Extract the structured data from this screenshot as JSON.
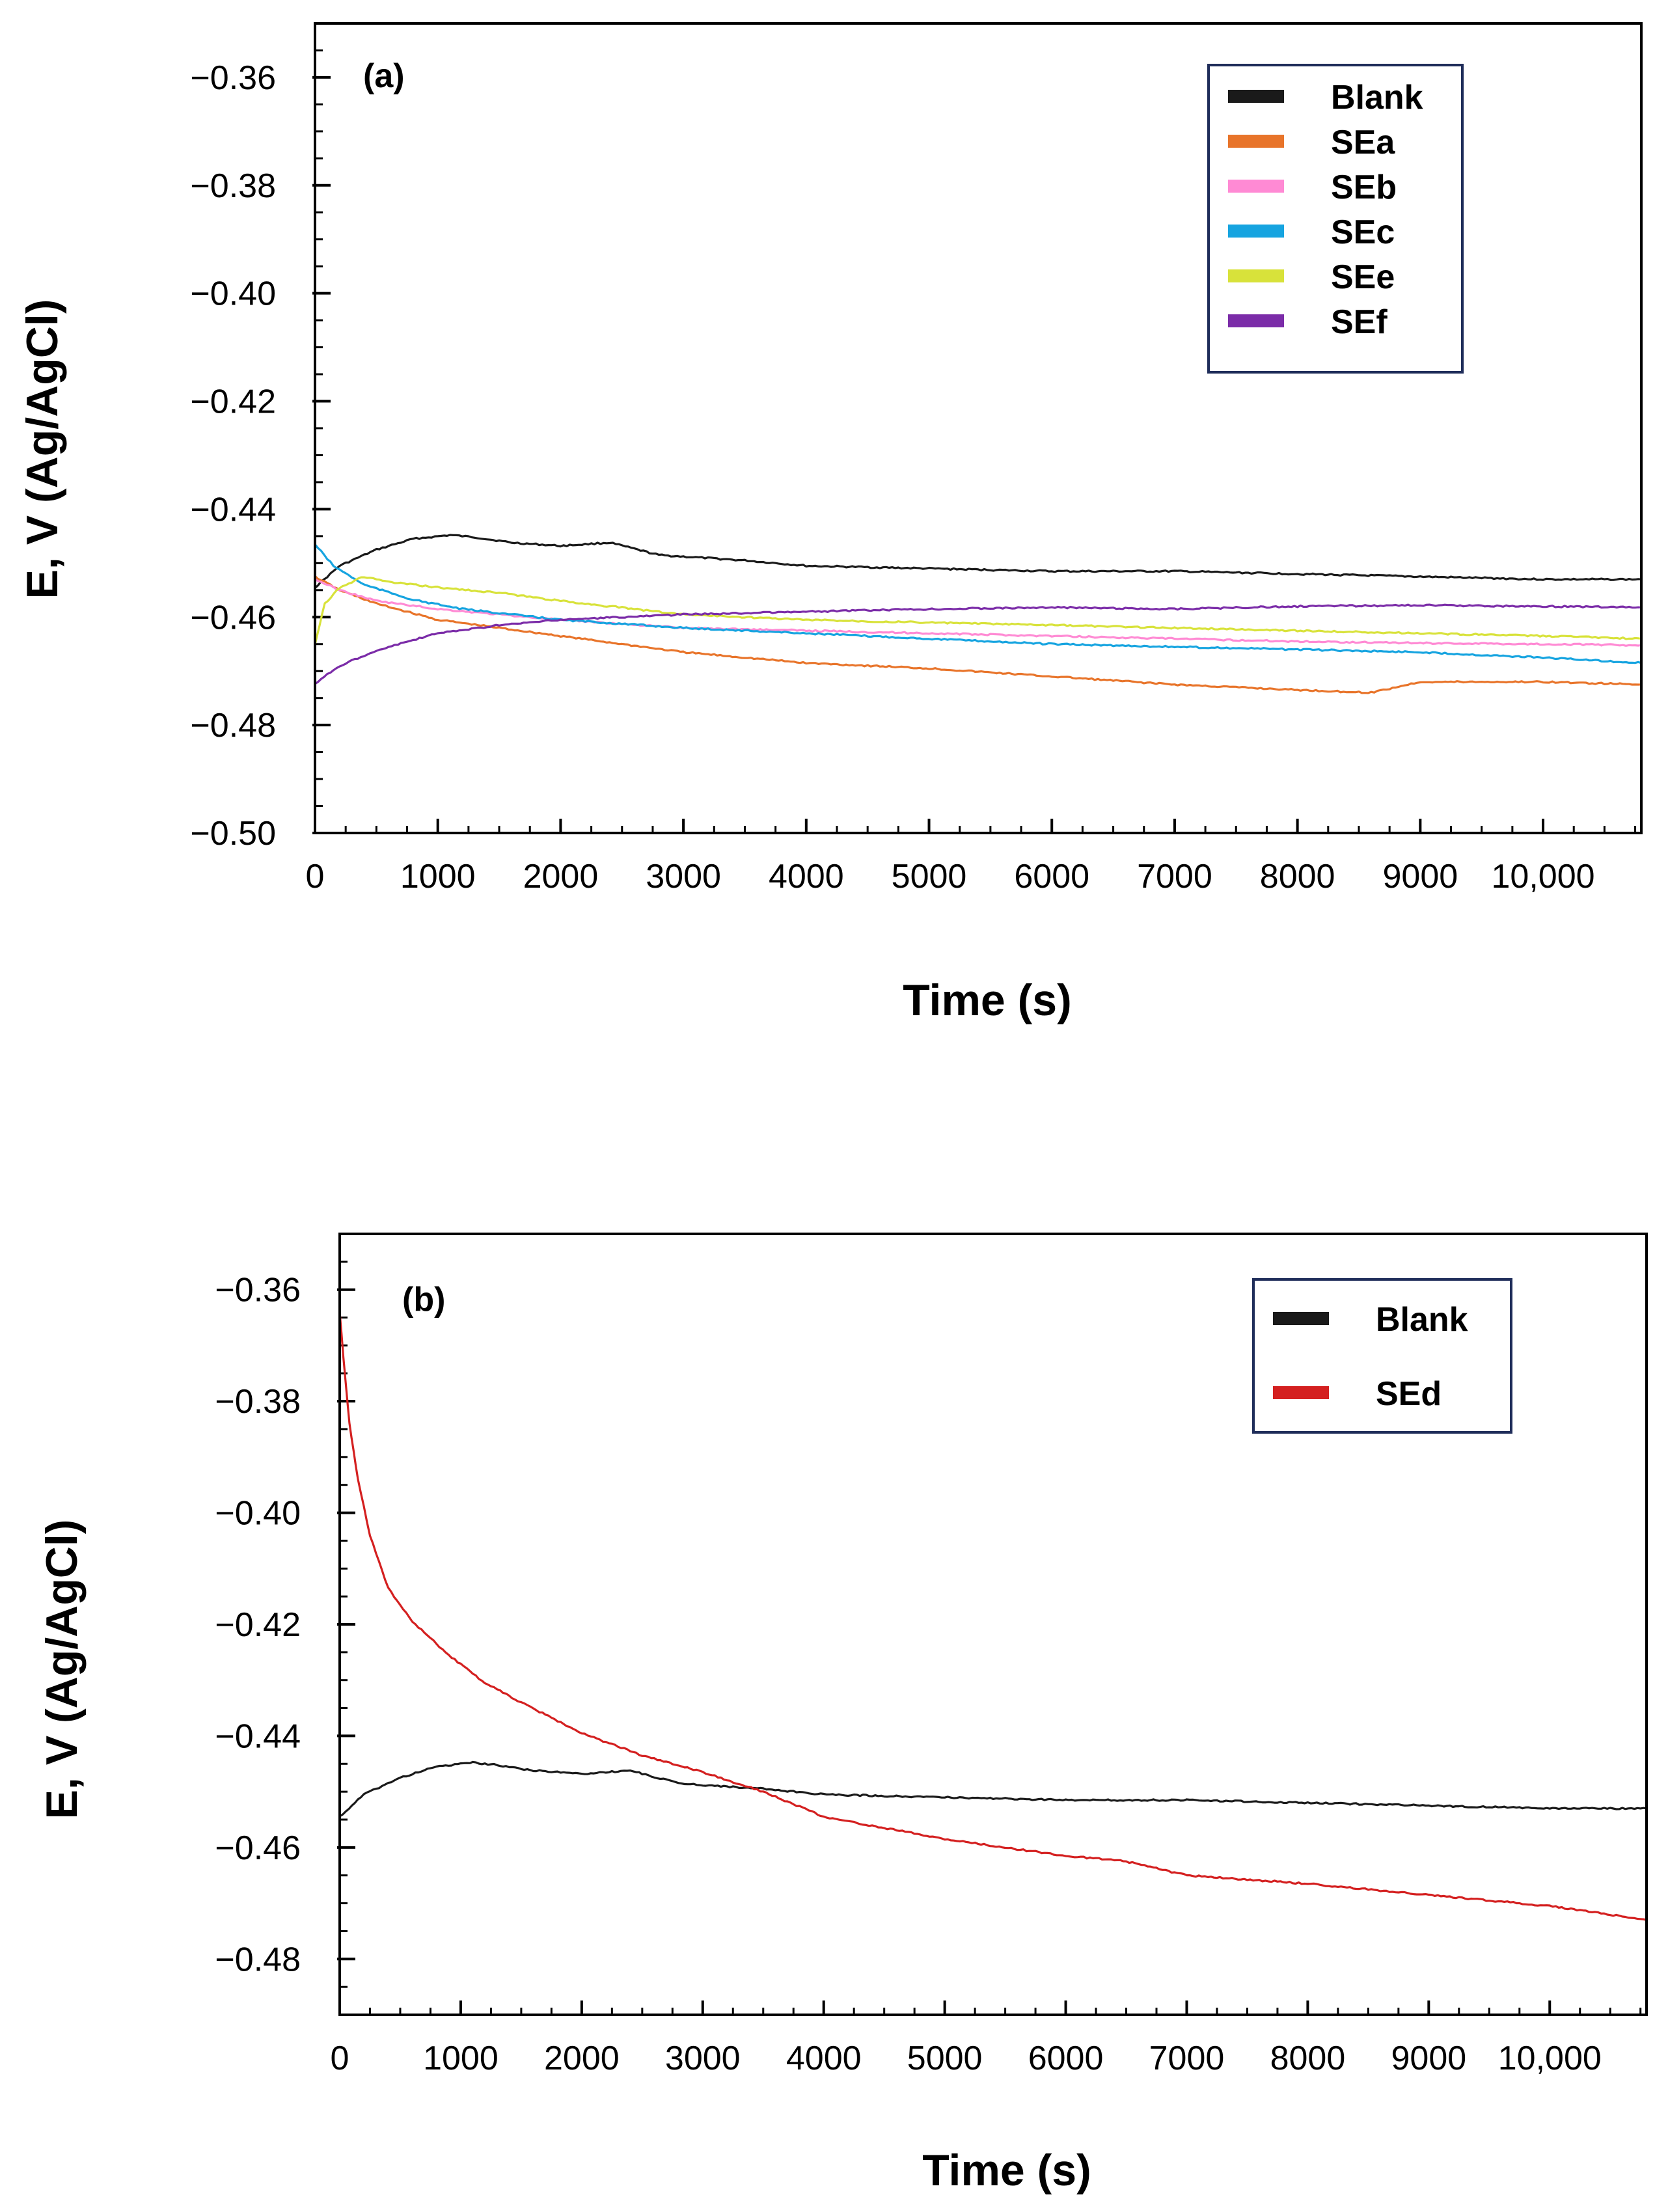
{
  "chart_data": [
    {
      "type": "line",
      "panel_label": "(a)",
      "xlabel": "Time (s)",
      "ylabel": "E, V (Ag/AgCl)",
      "xlim": [
        0,
        10800
      ],
      "ylim": [
        -0.5,
        -0.35
      ],
      "x_ticks": [
        0,
        1000,
        2000,
        3000,
        4000,
        5000,
        6000,
        7000,
        8000,
        9000,
        10000
      ],
      "x_tick_labels": [
        "0",
        "1000",
        "2000",
        "3000",
        "4000",
        "5000",
        "6000",
        "7000",
        "8000",
        "9000",
        "10,000"
      ],
      "y_ticks": [
        -0.36,
        -0.38,
        -0.4,
        -0.42,
        -0.44,
        -0.46,
        -0.48,
        -0.5
      ],
      "y_tick_labels": [
        "−0.36",
        "−0.38",
        "−0.40",
        "−0.42",
        "−0.44",
        "−0.46",
        "−0.48",
        "−0.50"
      ],
      "y_minor_step": 0.005,
      "legend_position": "top-right",
      "series": [
        {
          "name": "Blank",
          "color": "#1a1a1a",
          "x": [
            0,
            200,
            500,
            800,
            1100,
            1300,
            1600,
            2000,
            2400,
            2800,
            3500,
            4000,
            5000,
            6000,
            7000,
            8000,
            9000,
            10000,
            10800
          ],
          "y": [
            -0.4545,
            -0.4505,
            -0.4475,
            -0.4455,
            -0.4448,
            -0.4452,
            -0.4462,
            -0.4468,
            -0.4462,
            -0.4485,
            -0.4495,
            -0.4505,
            -0.451,
            -0.4515,
            -0.4515,
            -0.452,
            -0.4525,
            -0.453,
            -0.453
          ]
        },
        {
          "name": "SEa",
          "color": "#e8742a",
          "x": [
            0,
            200,
            500,
            1000,
            1500,
            2000,
            3000,
            4000,
            5000,
            6000,
            7000,
            8000,
            8600,
            9000,
            10000,
            10800
          ],
          "y": [
            -0.4525,
            -0.455,
            -0.4575,
            -0.4605,
            -0.462,
            -0.4635,
            -0.4665,
            -0.4685,
            -0.4695,
            -0.471,
            -0.4725,
            -0.4735,
            -0.474,
            -0.472,
            -0.472,
            -0.4725
          ]
        },
        {
          "name": "SEb",
          "color": "#ff8ad4",
          "x": [
            0,
            200,
            500,
            1000,
            2000,
            3000,
            4000,
            5000,
            6000,
            7000,
            8000,
            9000,
            10000,
            10800
          ],
          "y": [
            -0.453,
            -0.455,
            -0.457,
            -0.4585,
            -0.4605,
            -0.462,
            -0.4625,
            -0.463,
            -0.4635,
            -0.464,
            -0.4645,
            -0.4648,
            -0.465,
            -0.4652
          ]
        },
        {
          "name": "SEc",
          "color": "#16a4e0",
          "x": [
            0,
            150,
            400,
            800,
            1200,
            2000,
            3000,
            4000,
            5000,
            6000,
            7000,
            8000,
            9000,
            10000,
            10800
          ],
          "y": [
            -0.4465,
            -0.4505,
            -0.454,
            -0.4568,
            -0.4585,
            -0.4605,
            -0.462,
            -0.463,
            -0.464,
            -0.465,
            -0.4655,
            -0.466,
            -0.4665,
            -0.4675,
            -0.4685
          ]
        },
        {
          "name": "SEe",
          "color": "#d8e23a",
          "x": [
            0,
            80,
            200,
            400,
            600,
            1000,
            1500,
            2000,
            3000,
            4000,
            5000,
            6000,
            7000,
            8000,
            9000,
            10000,
            10800
          ],
          "y": [
            -0.465,
            -0.4575,
            -0.4545,
            -0.4525,
            -0.4535,
            -0.4545,
            -0.4555,
            -0.457,
            -0.4595,
            -0.4605,
            -0.461,
            -0.4615,
            -0.462,
            -0.4625,
            -0.463,
            -0.4635,
            -0.464
          ]
        },
        {
          "name": "SEf",
          "color": "#7b2ca8",
          "x": [
            0,
            100,
            300,
            600,
            1000,
            1500,
            2000,
            3000,
            4000,
            5000,
            6000,
            7000,
            8000,
            9000,
            10000,
            10800
          ],
          "y": [
            -0.4725,
            -0.4705,
            -0.468,
            -0.4655,
            -0.463,
            -0.4615,
            -0.4605,
            -0.4595,
            -0.459,
            -0.4585,
            -0.4582,
            -0.4585,
            -0.458,
            -0.4578,
            -0.458,
            -0.4582
          ]
        }
      ]
    },
    {
      "type": "line",
      "panel_label": "(b)",
      "xlabel": "Time (s)",
      "ylabel": "E, V (Ag/AgCl)",
      "xlim": [
        0,
        10800
      ],
      "ylim": [
        -0.49,
        -0.35
      ],
      "x_ticks": [
        0,
        1000,
        2000,
        3000,
        4000,
        5000,
        6000,
        7000,
        8000,
        9000,
        10000
      ],
      "x_tick_labels": [
        "0",
        "1000",
        "2000",
        "3000",
        "4000",
        "5000",
        "6000",
        "7000",
        "8000",
        "9000",
        "10,000"
      ],
      "y_ticks": [
        -0.36,
        -0.38,
        -0.4,
        -0.42,
        -0.44,
        -0.46,
        -0.48
      ],
      "y_tick_labels": [
        "−0.36",
        "−0.38",
        "−0.40",
        "−0.42",
        "−0.44",
        "−0.46",
        "−0.48"
      ],
      "y_minor_step": 0.005,
      "legend_position": "top-right",
      "series": [
        {
          "name": "Blank",
          "color": "#1a1a1a",
          "x": [
            0,
            200,
            500,
            800,
            1100,
            1300,
            1600,
            2000,
            2400,
            2800,
            3500,
            4000,
            5000,
            6000,
            7000,
            8000,
            9000,
            10000,
            10800
          ],
          "y": [
            -0.4545,
            -0.4505,
            -0.4475,
            -0.4455,
            -0.4448,
            -0.4452,
            -0.4462,
            -0.4468,
            -0.4462,
            -0.4485,
            -0.4495,
            -0.4505,
            -0.451,
            -0.4515,
            -0.4515,
            -0.452,
            -0.4525,
            -0.453,
            -0.453
          ]
        },
        {
          "name": "SEd",
          "color": "#d42020",
          "x": [
            0,
            30,
            80,
            150,
            250,
            400,
            600,
            900,
            1200,
            1500,
            2000,
            2500,
            3000,
            3500,
            4000,
            5000,
            6000,
            6500,
            7000,
            8000,
            9000,
            10000,
            10800
          ],
          "y": [
            -0.364,
            -0.372,
            -0.384,
            -0.394,
            -0.404,
            -0.4135,
            -0.4195,
            -0.4255,
            -0.4305,
            -0.434,
            -0.4395,
            -0.4435,
            -0.4465,
            -0.45,
            -0.4545,
            -0.4585,
            -0.4615,
            -0.4625,
            -0.465,
            -0.4665,
            -0.4685,
            -0.4705,
            -0.473
          ]
        }
      ]
    }
  ]
}
